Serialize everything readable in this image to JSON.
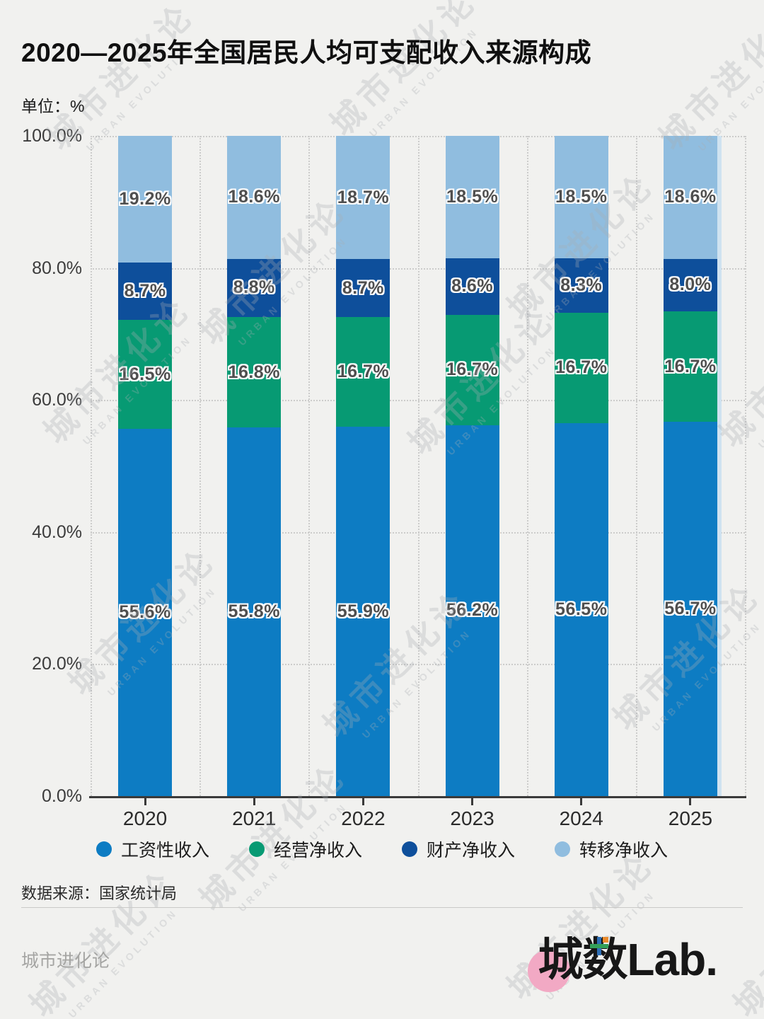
{
  "header": {
    "title": "2020—2025年全国居民人均可支配收入来源构成",
    "unit_label": "单位：%"
  },
  "chart_data": {
    "type": "bar",
    "stacked": true,
    "title": "2020—2025年全国居民人均可支配收入来源构成",
    "unit": "%",
    "categories": [
      "2020",
      "2021",
      "2022",
      "2023",
      "2024",
      "2025"
    ],
    "series": [
      {
        "name": "工资性收入",
        "color": "#0d7cc3",
        "values": [
          55.6,
          55.8,
          55.9,
          56.2,
          56.5,
          56.7
        ]
      },
      {
        "name": "经营净收入",
        "color": "#079a73",
        "values": [
          16.5,
          16.8,
          16.7,
          16.7,
          16.7,
          16.7
        ]
      },
      {
        "name": "财产净收入",
        "color": "#0e4f9b",
        "values": [
          8.7,
          8.8,
          8.7,
          8.6,
          8.3,
          8.0
        ]
      },
      {
        "name": "转移净收入",
        "color": "#90bddf",
        "values": [
          19.2,
          18.6,
          18.7,
          18.5,
          18.5,
          18.6
        ]
      }
    ],
    "y_tick_labels": [
      "100.0%",
      "80.0%",
      "60.0%",
      "40.0%",
      "20.0%",
      "0.0%"
    ],
    "ylim": [
      0,
      100
    ],
    "grid": "dotted",
    "legend_position": "bottom",
    "value_suffix": "%"
  },
  "footer": {
    "source": "数据来源：国家统计局",
    "brand": "城市进化论",
    "logo_text": "城数Lab."
  },
  "watermark": {
    "text": "城市进化论",
    "subtext": "URBAN EVOLUTION"
  }
}
